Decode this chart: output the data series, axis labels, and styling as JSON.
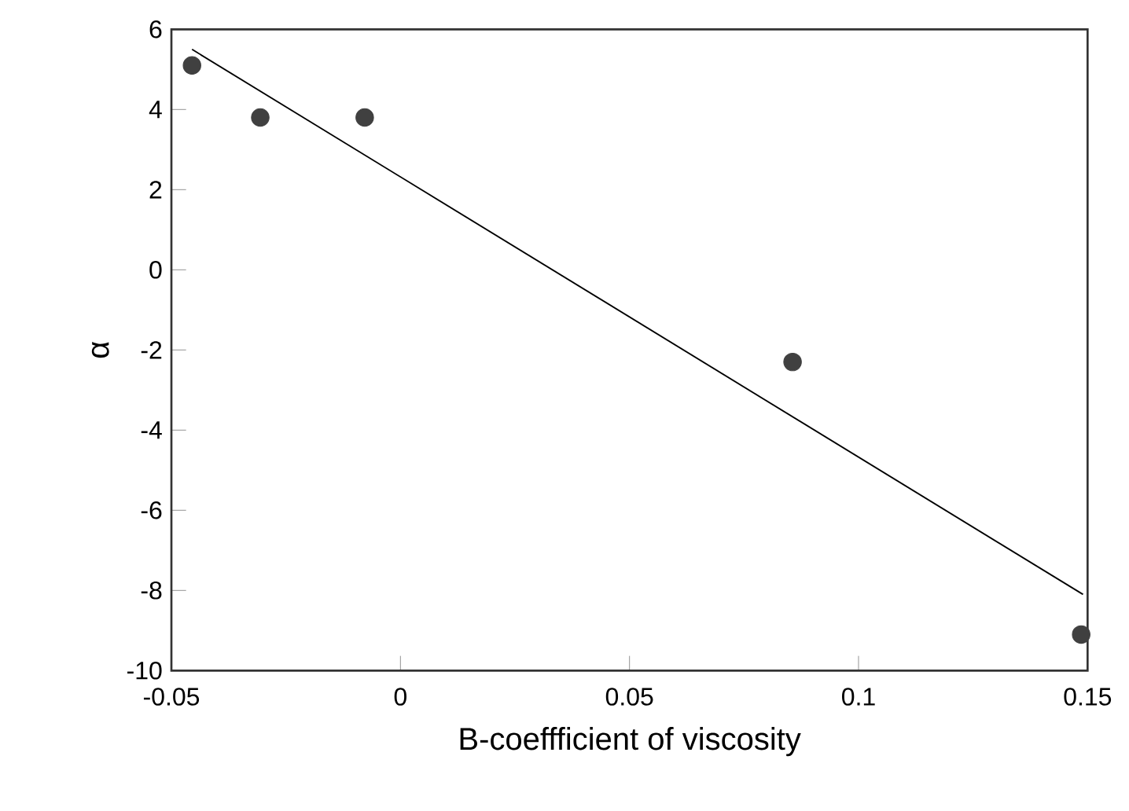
{
  "chart_data": {
    "type": "scatter",
    "xlabel": "B-coeffficient of viscosity",
    "ylabel": "α",
    "series": [
      {
        "color": "#404040",
        "marker": "circle",
        "x": [
          -0.0455,
          -0.0306,
          -0.0078,
          0.0856,
          0.1486
        ],
        "values": [
          5.1,
          3.8,
          3.8,
          -2.3,
          -9.1
        ]
      },
      {
        "type": "line",
        "color": "#000000",
        "line_style": "solid",
        "marker": "none",
        "x": [
          -0.0455,
          0.149
        ],
        "values": [
          5.5,
          -8.1
        ]
      }
    ],
    "xlim": [
      -0.05,
      0.15
    ],
    "ylim": [
      -10,
      6
    ],
    "xticks": [
      -0.05,
      0,
      0.05,
      0.1,
      0.15
    ],
    "yticks": [
      -10,
      -8,
      -6,
      -4,
      -2,
      0,
      2,
      4,
      6
    ],
    "grid": false
  }
}
